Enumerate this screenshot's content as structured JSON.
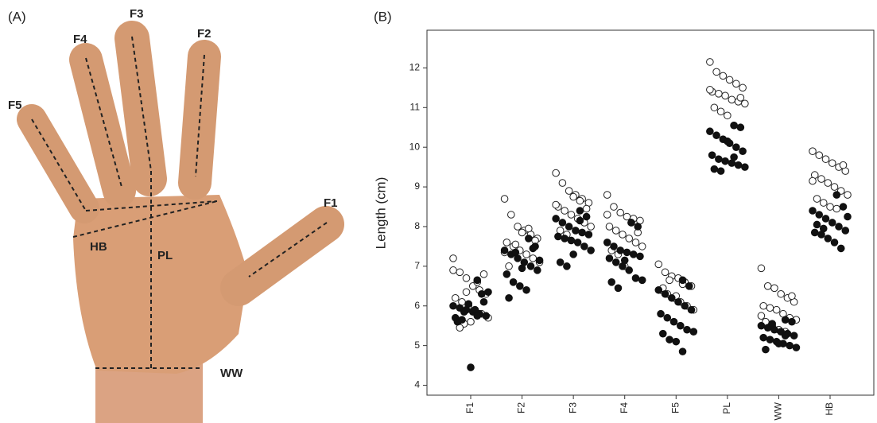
{
  "panel_a": {
    "label": "(A)",
    "measures": [
      "F5",
      "F4",
      "F3",
      "F2",
      "F1",
      "HB",
      "PL",
      "WW"
    ]
  },
  "chart_data": {
    "type": "strip",
    "panel_label": "(B)",
    "ylabel": "Length (cm)",
    "categories": [
      "F1",
      "F2",
      "F3",
      "F4",
      "F5",
      "PL",
      "WW",
      "HB"
    ],
    "ylim": [
      3.75,
      12.95
    ],
    "yticks": [
      4,
      5,
      6,
      7,
      8,
      9,
      10,
      11,
      12
    ],
    "series": [
      {
        "color": "#222222",
        "filled": false,
        "values": [
          [
            6.9,
            6.85,
            6.7,
            6.5,
            6.4,
            6.3,
            6.2,
            6.1,
            6.0,
            5.9,
            5.8,
            5.7,
            5.6,
            5.55,
            5.6,
            6.6,
            6.8,
            7.2,
            5.45,
            6.35
          ],
          [
            8.7,
            8.3,
            8.0,
            7.9,
            7.8,
            7.7,
            7.6,
            7.5,
            7.4,
            7.3,
            7.2,
            7.1,
            7.0,
            7.55,
            7.85,
            7.95,
            7.65,
            7.35
          ],
          [
            9.35,
            9.1,
            8.9,
            8.8,
            8.7,
            8.6,
            8.5,
            8.4,
            8.3,
            8.2,
            8.1,
            8.0,
            7.9,
            7.8,
            8.75,
            8.65,
            8.45,
            8.55
          ],
          [
            8.8,
            8.5,
            8.35,
            8.25,
            8.2,
            8.15,
            8.0,
            7.9,
            7.8,
            7.7,
            7.6,
            7.5,
            7.4,
            7.3,
            7.0,
            8.1,
            7.85,
            8.3
          ],
          [
            7.05,
            6.85,
            6.75,
            6.7,
            6.6,
            6.5,
            6.4,
            6.3,
            6.2,
            6.1,
            6.0,
            5.9,
            6.45,
            6.65,
            6.25,
            6.55
          ],
          [
            12.15,
            11.9,
            11.8,
            11.7,
            11.6,
            11.5,
            11.4,
            11.35,
            11.3,
            11.2,
            11.15,
            11.1,
            11.0,
            10.9,
            10.8,
            10.55,
            11.25,
            11.45
          ],
          [
            6.95,
            6.5,
            6.45,
            6.3,
            6.2,
            6.1,
            6.0,
            5.95,
            5.9,
            5.8,
            5.7,
            5.65,
            5.6,
            5.5,
            5.4,
            5.35,
            6.25,
            5.75
          ],
          [
            9.9,
            9.8,
            9.7,
            9.6,
            9.5,
            9.4,
            9.3,
            9.2,
            9.1,
            9.0,
            8.9,
            8.8,
            8.7,
            8.6,
            8.5,
            8.45,
            9.55,
            9.15
          ]
        ]
      },
      {
        "color": "#111111",
        "filled": true,
        "values": [
          [
            6.65,
            6.1,
            6.0,
            5.95,
            5.9,
            5.85,
            5.8,
            5.75,
            5.7,
            5.65,
            6.05,
            5.9,
            6.3,
            6.35,
            5.6,
            5.85,
            4.45,
            5.75
          ],
          [
            7.7,
            7.5,
            7.4,
            7.3,
            7.2,
            7.1,
            7.0,
            6.9,
            6.8,
            6.6,
            6.5,
            6.4,
            7.45,
            7.15,
            6.2,
            7.35,
            6.95
          ],
          [
            8.4,
            8.25,
            8.2,
            8.1,
            8.0,
            7.9,
            7.85,
            7.8,
            7.75,
            7.7,
            7.65,
            7.6,
            7.5,
            7.4,
            7.1,
            7.0,
            7.3,
            8.15
          ],
          [
            8.1,
            8.0,
            7.6,
            7.5,
            7.4,
            7.35,
            7.3,
            7.25,
            7.2,
            7.1,
            7.0,
            6.9,
            6.7,
            6.65,
            6.6,
            6.45,
            7.15
          ],
          [
            6.65,
            6.5,
            6.4,
            6.3,
            6.2,
            6.1,
            6.0,
            5.9,
            5.8,
            5.7,
            5.6,
            5.5,
            5.4,
            5.35,
            5.3,
            5.15,
            5.1,
            4.85
          ],
          [
            10.55,
            10.5,
            10.4,
            10.3,
            10.2,
            10.1,
            10.0,
            9.9,
            9.8,
            9.7,
            9.65,
            9.6,
            9.55,
            9.5,
            9.45,
            9.4,
            10.15,
            9.75
          ],
          [
            5.65,
            5.6,
            5.5,
            5.45,
            5.4,
            5.35,
            5.3,
            5.25,
            5.2,
            5.15,
            5.1,
            5.05,
            5.0,
            4.95,
            4.9,
            5.55,
            5.05,
            5.25
          ],
          [
            8.8,
            8.5,
            8.4,
            8.3,
            8.2,
            8.1,
            8.0,
            7.9,
            7.85,
            7.8,
            7.7,
            7.6,
            7.45,
            8.25,
            8.05,
            7.95
          ]
        ]
      }
    ]
  }
}
